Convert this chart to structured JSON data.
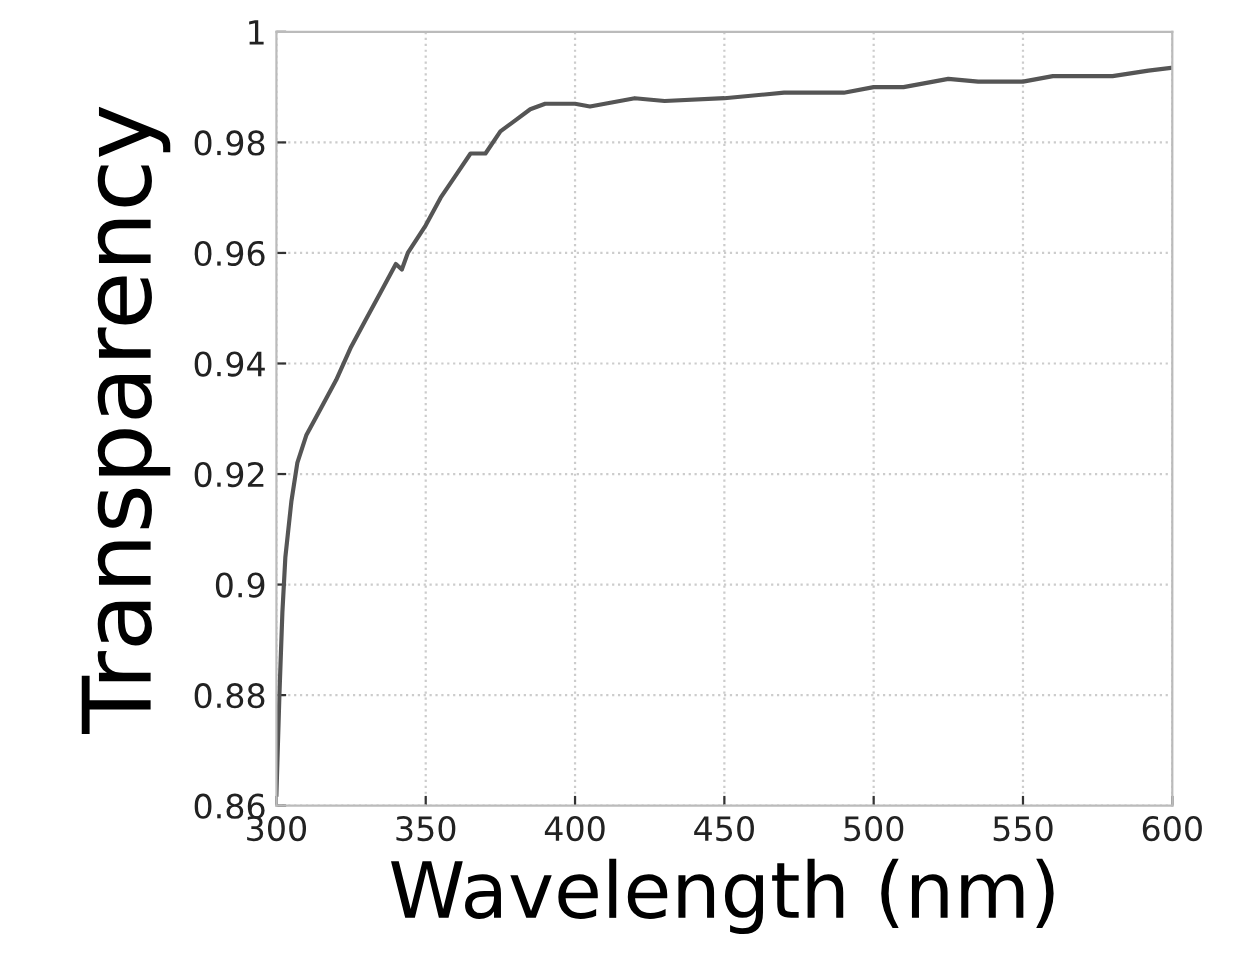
{
  "chart_data": {
    "type": "line",
    "xlabel": "Wavelength (nm)",
    "ylabel": "Transparency",
    "x": [
      300,
      301,
      302,
      303,
      305,
      307,
      310,
      315,
      320,
      325,
      330,
      335,
      340,
      342,
      344,
      350,
      355,
      360,
      365,
      370,
      375,
      380,
      385,
      390,
      400,
      405,
      410,
      415,
      420,
      430,
      450,
      470,
      490,
      500,
      510,
      520,
      525,
      535,
      550,
      560,
      580,
      592,
      600
    ],
    "series": [
      {
        "color": "#555555",
        "values": [
          0.862,
          0.88,
          0.895,
          0.905,
          0.915,
          0.922,
          0.927,
          0.932,
          0.937,
          0.943,
          0.948,
          0.953,
          0.958,
          0.957,
          0.96,
          0.965,
          0.97,
          0.974,
          0.978,
          0.978,
          0.982,
          0.984,
          0.986,
          0.987,
          0.987,
          0.9865,
          0.987,
          0.9875,
          0.988,
          0.9875,
          0.988,
          0.989,
          0.989,
          0.99,
          0.99,
          0.991,
          0.9915,
          0.991,
          0.991,
          0.992,
          0.992,
          0.993,
          0.9935
        ]
      }
    ],
    "xlim": [
      300,
      600
    ],
    "ylim": [
      0.86,
      1
    ],
    "xticks": [
      300,
      350,
      400,
      450,
      500,
      550,
      600
    ],
    "yticks": [
      0.86,
      0.88,
      0.9,
      0.92,
      0.94,
      0.96,
      0.98,
      1
    ],
    "grid": true,
    "line_style": "solid",
    "marker": "none"
  }
}
